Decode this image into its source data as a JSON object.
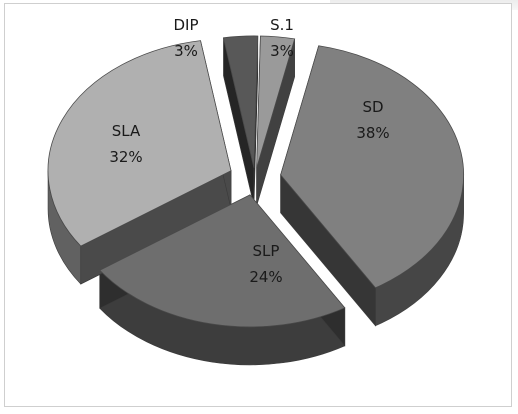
{
  "chart_data": {
    "type": "pie",
    "style": "3d-exploded",
    "slices": [
      {
        "label": "SD",
        "value": 38,
        "value_label": "38%",
        "color": "#808080"
      },
      {
        "label": "SLP",
        "value": 24,
        "value_label": "24%",
        "color": "#6e6e6e"
      },
      {
        "label": "SLA",
        "value": 32,
        "value_label": "32%",
        "color": "#b0b0b0"
      },
      {
        "label": "DIP",
        "value": 3,
        "value_label": "3%",
        "color": "#585858"
      },
      {
        "label": "S.1",
        "value": 3,
        "value_label": "3%",
        "color": "#9a9a9a"
      }
    ]
  }
}
